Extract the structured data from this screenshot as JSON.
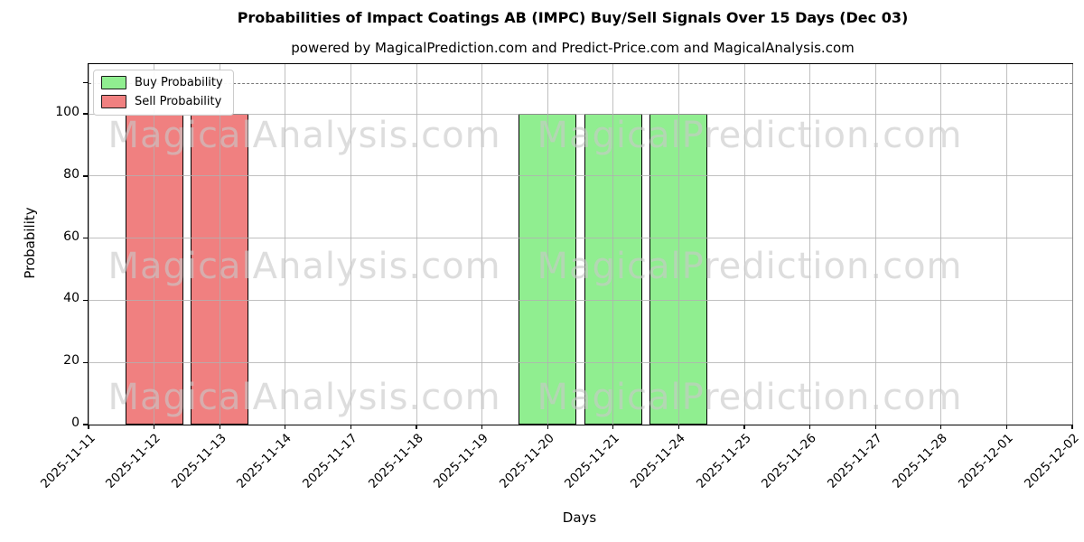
{
  "chart_data": {
    "type": "bar",
    "title": "Probabilities of Impact Coatings AB (IMPC) Buy/Sell Signals Over 15 Days (Dec 03)",
    "subtitle": "powered by MagicalPrediction.com and Predict-Price.com and MagicalAnalysis.com",
    "xlabel": "Days",
    "ylabel": "Probability",
    "categories": [
      "2025-11-11",
      "2025-11-12",
      "2025-11-13",
      "2025-11-14",
      "2025-11-17",
      "2025-11-18",
      "2025-11-19",
      "2025-11-20",
      "2025-11-21",
      "2025-11-24",
      "2025-11-25",
      "2025-11-26",
      "2025-11-27",
      "2025-11-28",
      "2025-12-01",
      "2025-12-02"
    ],
    "series": [
      {
        "name": "Buy Probability",
        "color": "#90ee90",
        "values": [
          0,
          0,
          0,
          0,
          0,
          0,
          0,
          100,
          100,
          100,
          0,
          0,
          0,
          0,
          0,
          0
        ]
      },
      {
        "name": "Sell Probability",
        "color": "#f08080",
        "values": [
          0,
          100,
          100,
          0,
          0,
          0,
          0,
          0,
          0,
          0,
          0,
          0,
          0,
          0,
          0,
          0
        ]
      }
    ],
    "yticks": [
      0,
      20,
      40,
      60,
      80,
      100
    ],
    "ylim": [
      0,
      116
    ],
    "dashed_line_y": 110,
    "grid": true,
    "legend_position": "upper left",
    "bar_edge_color": "#000000",
    "grid_color": "#b0b0b0",
    "dashed_line_color": "#7a7a7a",
    "watermarks": [
      "MagicalAnalysis.com",
      "MagicalPrediction.com"
    ]
  }
}
